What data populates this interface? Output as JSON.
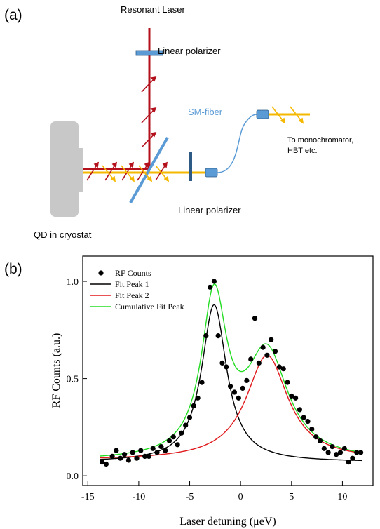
{
  "panel_a": {
    "label": "(a)",
    "resonant_laser": "Resonant Laser",
    "polarizer_top": "Linear polarizer",
    "polarizer_bottom": "Linear polarizer",
    "sm_fiber": "SM-fiber",
    "to_mono_line1": "To monochromator,",
    "to_mono_line2": "HBT etc.",
    "qd_label": "QD in cryostat",
    "colors": {
      "laser_red": "#b3101c",
      "signal_yellow": "#f5b800",
      "optic_blue": "#5b9bd5",
      "fiber_blue": "#5b9bd5",
      "cryostat_gray": "#c8c8c8",
      "polarizer_dark": "#2e5b85"
    }
  },
  "panel_b": {
    "label": "(b)"
  },
  "chart_data": {
    "type": "scatter",
    "xlabel": "Laser detuning (μeV)",
    "ylabel": "RF Counts (a.u.)",
    "xlim": [
      -15.5,
      13
    ],
    "ylim": [
      -0.05,
      1.13
    ],
    "xticks": [
      -15,
      -10,
      -5,
      0,
      5,
      10
    ],
    "xtick_labels": [
      "-15",
      "-10",
      "-5",
      "0",
      "5",
      "10"
    ],
    "yticks": [
      0.0,
      0.5,
      1.0
    ],
    "ytick_labels": [
      "0.0",
      "0.5",
      "1.0"
    ],
    "grid": false,
    "legend_position": "top-left",
    "legend": [
      "RF Counts",
      "Fit Peak 1",
      "Fit Peak 2",
      "Cumulative Fit Peak"
    ],
    "scatter": {
      "name": "RF Counts",
      "color": "#000000",
      "x": [
        -13.6,
        -13.2,
        -12.6,
        -12.2,
        -11.8,
        -11.4,
        -11,
        -10.6,
        -10.2,
        -9.8,
        -9.4,
        -9,
        -8.6,
        -8.2,
        -7.8,
        -7.4,
        -7,
        -6.6,
        -6.2,
        -5.8,
        -5.4,
        -5,
        -4.6,
        -4.2,
        -3.8,
        -3.4,
        -3.0,
        -2.6,
        -2.2,
        -1.8,
        -1.4,
        -1.0,
        -0.6,
        -0.2,
        0.2,
        0.6,
        1.0,
        1.4,
        1.8,
        2.2,
        2.6,
        3.0,
        3.4,
        3.8,
        4.2,
        4.6,
        5.0,
        5.4,
        5.8,
        6.2,
        6.6,
        7.0,
        7.4,
        7.8,
        8.2,
        8.6,
        9.0,
        9.4,
        9.8,
        10.2,
        10.6,
        11.0,
        11.4,
        11.8
      ],
      "y": [
        0.07,
        0.06,
        0.1,
        0.13,
        0.09,
        0.11,
        0.08,
        0.12,
        0.09,
        0.13,
        0.1,
        0.1,
        0.14,
        0.12,
        0.15,
        0.13,
        0.18,
        0.2,
        0.16,
        0.22,
        0.26,
        0.3,
        0.36,
        0.4,
        0.48,
        0.72,
        0.97,
        1.0,
        0.72,
        0.58,
        0.56,
        0.46,
        0.43,
        0.4,
        0.45,
        0.49,
        0.6,
        0.81,
        0.58,
        0.66,
        0.62,
        0.7,
        0.64,
        0.56,
        0.55,
        0.48,
        0.41,
        0.4,
        0.34,
        0.3,
        0.28,
        0.24,
        0.2,
        0.18,
        0.14,
        0.12,
        0.15,
        0.11,
        0.12,
        0.14,
        0.07,
        0.09,
        0.12,
        0.12
      ]
    },
    "series": [
      {
        "name": "Fit Peak 1",
        "color": "#000000",
        "model": "lorentzian",
        "y0": 0.07,
        "amp": 0.81,
        "center": -2.6,
        "hwhm": 1.5
      },
      {
        "name": "Fit Peak 2",
        "color": "#e0191c",
        "model": "lorentzian",
        "y0": 0.08,
        "amp": 0.54,
        "center": 2.6,
        "hwhm": 2.5
      },
      {
        "name": "Cumulative Fit Peak",
        "color": "#22dd22",
        "model": "sum"
      }
    ]
  }
}
